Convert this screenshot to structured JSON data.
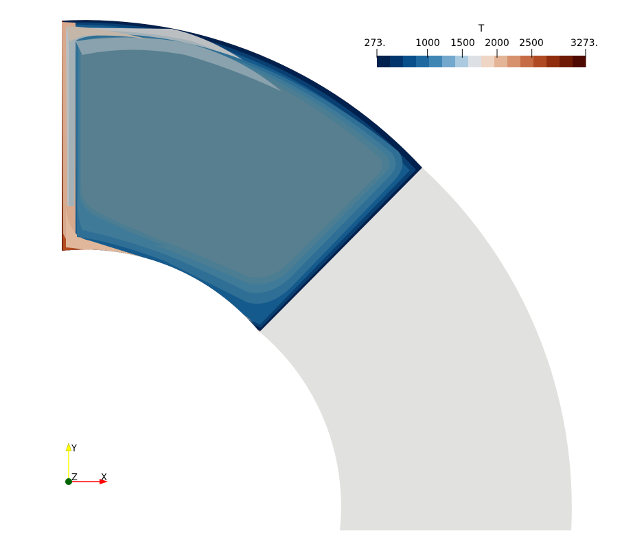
{
  "colorbar": {
    "title": "T",
    "tick_labels": [
      "273.",
      "1000",
      "1500",
      "2000",
      "2500",
      "3273."
    ],
    "range": [
      273,
      3273
    ],
    "ticks": [
      273,
      1000,
      1500,
      2000,
      2500,
      3273
    ],
    "colors": [
      "#00204d",
      "#02356c",
      "#084f8b",
      "#1e6aa0",
      "#3f86b5",
      "#73a8cc",
      "#abcae0",
      "#dde1e6",
      "#efd5c4",
      "#e3b596",
      "#d6916d",
      "#c66c45",
      "#b04a22",
      "#8f2d0c",
      "#6e1a05",
      "#4e0a02"
    ]
  },
  "axes": {
    "y_label": "Y",
    "z_label": "Z",
    "x_label": "X",
    "y_color": "#ffff00",
    "x_color": "#ff0000",
    "z_color": "#006400"
  },
  "field": {
    "solid_color": "#e1e1df",
    "fluid_core_color": "#587f90"
  }
}
